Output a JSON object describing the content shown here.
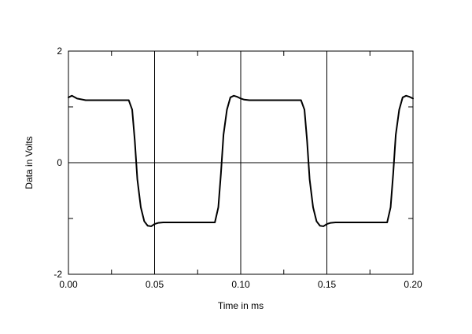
{
  "chart_data": {
    "type": "line",
    "xlabel": "Time in ms",
    "ylabel": "Data in Volts",
    "xlim": [
      0,
      0.2
    ],
    "ylim": [
      -2,
      2
    ],
    "grid": true,
    "x_ticks": [
      0,
      0.05,
      0.1,
      0.15,
      0.2
    ],
    "x_tick_labels": [
      "0.00",
      "0.05",
      "0.10",
      "0.15",
      "0.20"
    ],
    "y_ticks": [
      -2,
      0,
      2
    ],
    "y_tick_labels": [
      "-2",
      "0",
      "2"
    ],
    "line_color": "#000000",
    "series": [
      {
        "x": [
          0.0,
          0.002,
          0.005,
          0.01,
          0.02,
          0.03,
          0.035,
          0.037,
          0.0385,
          0.04,
          0.042,
          0.044,
          0.046,
          0.048,
          0.05,
          0.052,
          0.055,
          0.06,
          0.07,
          0.08,
          0.085,
          0.087,
          0.0885,
          0.09,
          0.092,
          0.094,
          0.096,
          0.098,
          0.1,
          0.102,
          0.105,
          0.11,
          0.12,
          0.13,
          0.135,
          0.137,
          0.1385,
          0.14,
          0.142,
          0.144,
          0.146,
          0.148,
          0.15,
          0.152,
          0.155,
          0.16,
          0.17,
          0.18,
          0.185,
          0.187,
          0.1885,
          0.19,
          0.192,
          0.194,
          0.196,
          0.198,
          0.2
        ],
        "values": [
          1.17,
          1.2,
          1.15,
          1.12,
          1.12,
          1.12,
          1.12,
          0.95,
          0.4,
          -0.3,
          -0.8,
          -1.05,
          -1.13,
          -1.14,
          -1.1,
          -1.08,
          -1.07,
          -1.07,
          -1.07,
          -1.07,
          -1.07,
          -0.8,
          -0.2,
          0.5,
          0.95,
          1.17,
          1.2,
          1.18,
          1.15,
          1.13,
          1.12,
          1.12,
          1.12,
          1.12,
          1.12,
          0.95,
          0.4,
          -0.3,
          -0.8,
          -1.05,
          -1.13,
          -1.14,
          -1.1,
          -1.08,
          -1.07,
          -1.07,
          -1.07,
          -1.07,
          -1.07,
          -0.8,
          -0.2,
          0.5,
          0.95,
          1.17,
          1.2,
          1.18,
          1.15
        ]
      }
    ]
  }
}
